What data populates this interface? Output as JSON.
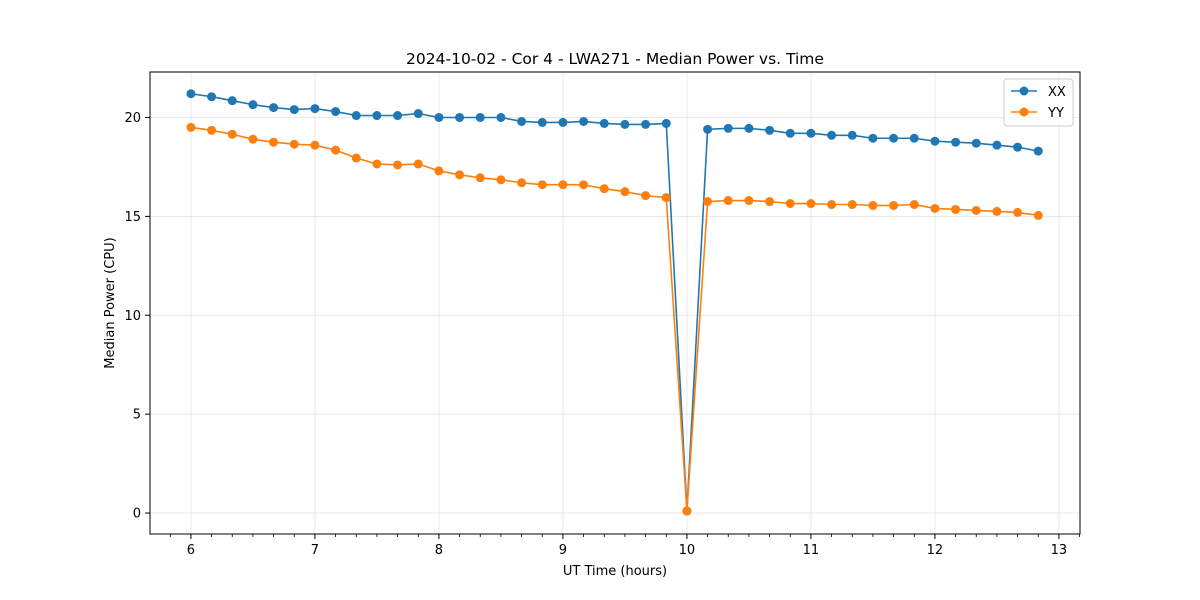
{
  "chart_data": {
    "type": "line",
    "title": "2024-10-02 - Cor 4 - LWA271 - Median Power vs. Time",
    "xlabel": "UT Time (hours)",
    "ylabel": "Median Power (CPU)",
    "xlim": [
      5.67,
      13.17
    ],
    "ylim": [
      -1.06,
      22.3
    ],
    "xticks": [
      6,
      7,
      8,
      9,
      10,
      11,
      12,
      13
    ],
    "yticks": [
      0,
      5,
      10,
      15,
      20
    ],
    "grid": true,
    "legend_position": "top-right",
    "x": [
      6.0,
      6.1667,
      6.3333,
      6.5,
      6.6667,
      6.8333,
      7.0,
      7.1667,
      7.3333,
      7.5,
      7.6667,
      7.8333,
      8.0,
      8.1667,
      8.3333,
      8.5,
      8.6667,
      8.8333,
      9.0,
      9.1667,
      9.3333,
      9.5,
      9.6667,
      9.8333,
      10.0,
      10.1667,
      10.3333,
      10.5,
      10.6667,
      10.8333,
      11.0,
      11.1667,
      11.3333,
      11.5,
      11.6667,
      11.8333,
      12.0,
      12.1667,
      12.3333,
      12.5,
      12.6667,
      12.8333
    ],
    "series": [
      {
        "name": "XX",
        "color": "#1f77b4",
        "values": [
          21.2,
          21.05,
          20.85,
          20.65,
          20.5,
          20.4,
          20.45,
          20.3,
          20.1,
          20.1,
          20.1,
          20.2,
          20.0,
          20.0,
          20.0,
          20.0,
          19.8,
          19.75,
          19.75,
          19.8,
          19.7,
          19.65,
          19.65,
          19.7,
          0.1,
          19.4,
          19.45,
          19.45,
          19.35,
          19.2,
          19.2,
          19.1,
          19.1,
          18.95,
          18.95,
          18.95,
          18.8,
          18.75,
          18.7,
          18.6,
          18.5,
          18.3
        ]
      },
      {
        "name": "YY",
        "color": "#ff7f0e",
        "values": [
          19.5,
          19.35,
          19.15,
          18.9,
          18.75,
          18.65,
          18.6,
          18.35,
          17.95,
          17.65,
          17.6,
          17.65,
          17.3,
          17.1,
          16.95,
          16.85,
          16.7,
          16.6,
          16.6,
          16.6,
          16.4,
          16.25,
          16.05,
          15.95,
          0.1,
          15.75,
          15.8,
          15.8,
          15.75,
          15.65,
          15.65,
          15.6,
          15.6,
          15.55,
          15.55,
          15.6,
          15.4,
          15.35,
          15.3,
          15.25,
          15.2,
          15.05
        ]
      }
    ]
  }
}
